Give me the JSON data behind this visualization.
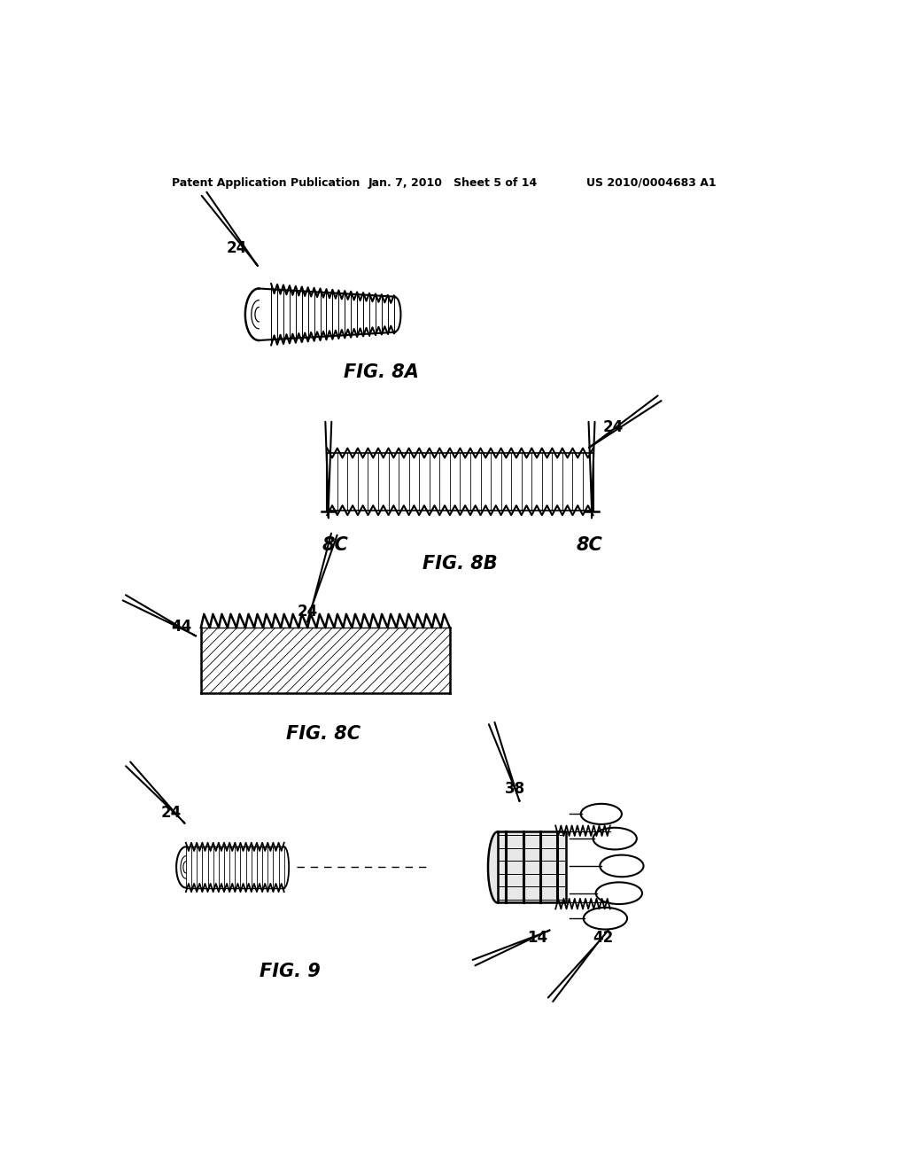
{
  "bg_color": "#ffffff",
  "header_left": "Patent Application Publication",
  "header_center": "Jan. 7, 2010   Sheet 5 of 14",
  "header_right": "US 2010/0004683 A1",
  "fig8a_label": "FIG. 8A",
  "fig8b_label": "FIG. 8B",
  "fig8c_label": "FIG. 8C",
  "fig9_label": "FIG. 9",
  "label_24a": "24",
  "label_24b": "24",
  "label_24c": "24",
  "label_24d": "24",
  "label_44": "44",
  "label_38": "38",
  "label_14": "14",
  "label_42": "42",
  "label_8c_left": "8C",
  "label_8c_right": "8C"
}
